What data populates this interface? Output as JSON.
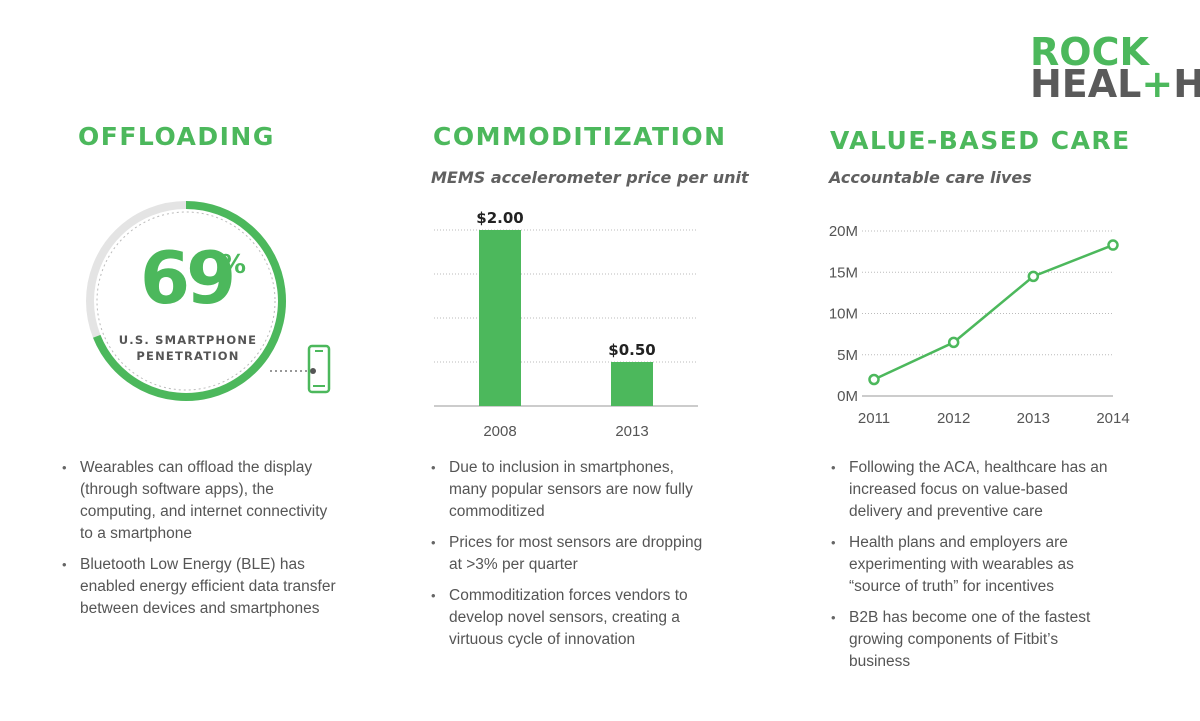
{
  "logo": {
    "line1": "ROCK",
    "line2_a": "HEAL",
    "line2_plus": "+",
    "line2_b": "H"
  },
  "columns": {
    "offloading": {
      "title": "OFFLOADING",
      "stat": {
        "value": "69",
        "unit": "%",
        "fraction": 0.69,
        "label_lines": [
          "U.S. SMARTPHONE",
          "PENETRATION"
        ]
      },
      "icon": "smartphone-icon",
      "bullets": [
        [
          "Wearables can offload the display",
          "(through software apps), the",
          "computing, and internet connectivity",
          "to a smartphone"
        ],
        [
          "Bluetooth Low Energy (BLE) has",
          "enabled energy efficient data transfer",
          "between devices and smartphones"
        ]
      ]
    },
    "commoditization": {
      "title": "COMMODITIZATION",
      "bullets": [
        [
          "Due to inclusion in smartphones,",
          "many popular sensors are now fully",
          "commoditized"
        ],
        [
          "Prices for most sensors are dropping",
          "at >3% per quarter"
        ],
        [
          "Commoditization forces vendors to",
          "develop novel sensors, creating a",
          "virtuous cycle of innovation"
        ]
      ]
    },
    "value_based_care": {
      "title": "VALUE-BASED CARE",
      "bullets": [
        [
          "Following the ACA, healthcare has an",
          "increased focus on value-based",
          "delivery and preventive care"
        ],
        [
          "Health plans and employers are",
          "experimenting with wearables as",
          "“source of truth” for incentives"
        ],
        [
          "B2B has become one of the fastest",
          "growing components of Fitbit’s",
          "business"
        ]
      ]
    }
  },
  "colors": {
    "accent": "#4cb85c",
    "ring_track": "#e4e4e4",
    "text": "#555555",
    "grid": "#bbbbbb"
  },
  "chart_data": [
    {
      "type": "bar",
      "title": "MEMS accelerometer price per unit",
      "categories": [
        "2008",
        "2013"
      ],
      "values": [
        2.0,
        0.5
      ],
      "data_labels": [
        "$2.00",
        "$0.50"
      ],
      "ylim": [
        0,
        2.0
      ],
      "grid": true,
      "xlabel": "",
      "ylabel": ""
    },
    {
      "type": "line",
      "title": "Accountable care lives",
      "x": [
        "2011",
        "2012",
        "2013",
        "2014"
      ],
      "values": [
        2,
        6.5,
        14.5,
        18.3
      ],
      "y_ticks": [
        "0M",
        "5M",
        "10M",
        "15M",
        "20M"
      ],
      "ylim": [
        0,
        20
      ],
      "grid": true,
      "xlabel": "",
      "ylabel": ""
    }
  ]
}
